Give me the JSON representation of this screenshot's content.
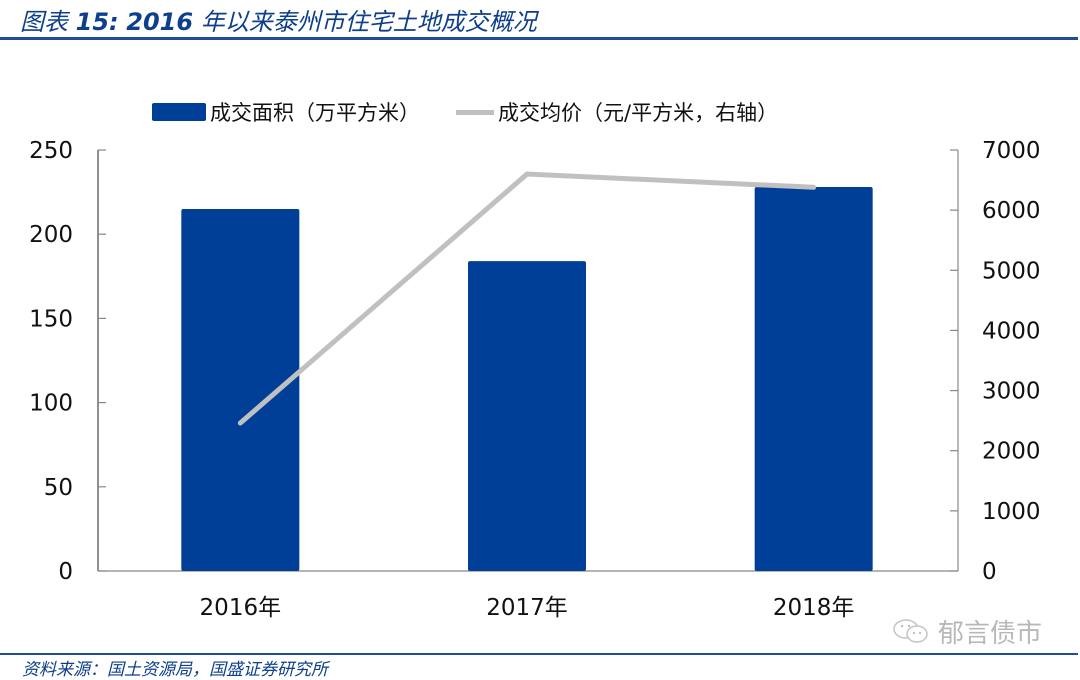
{
  "header": {
    "title_prefix": "图表",
    "title_number": "15:",
    "title_year": "2016",
    "title_text": "年以来泰州市住宅土地成交概况"
  },
  "legend": {
    "bar_label": "成交面积（万平方米）",
    "line_label": "成交均价（元/平方米，右轴）"
  },
  "footer": {
    "source": "资料来源：国土资源局，国盛证券研究所",
    "watermark": "郁言债市"
  },
  "colors": {
    "bar": "#003f98",
    "line": "#c0c0c0",
    "accent": "#1f4e96"
  },
  "chart_data": {
    "type": "bar",
    "title": "图表15：2016年以来泰州市住宅土地成交概况",
    "categories": [
      "2016年",
      "2017年",
      "2018年"
    ],
    "series": [
      {
        "name": "成交面积（万平方米）",
        "type": "bar",
        "axis": "left",
        "values": [
          215,
          184,
          228
        ]
      },
      {
        "name": "成交均价（元/平方米，右轴）",
        "type": "line",
        "axis": "right",
        "values": [
          2460,
          6600,
          6380
        ]
      }
    ],
    "xlabel": "",
    "ylabel": "",
    "ylim": [
      0,
      250
    ],
    "y_ticks": [
      "0",
      "50",
      "100",
      "150",
      "200",
      "250"
    ],
    "y2lim": [
      0,
      7000
    ],
    "y2_ticks": [
      "0",
      "1000",
      "2000",
      "3000",
      "4000",
      "5000",
      "6000",
      "7000"
    ],
    "grid": false,
    "legend_position": "top"
  }
}
